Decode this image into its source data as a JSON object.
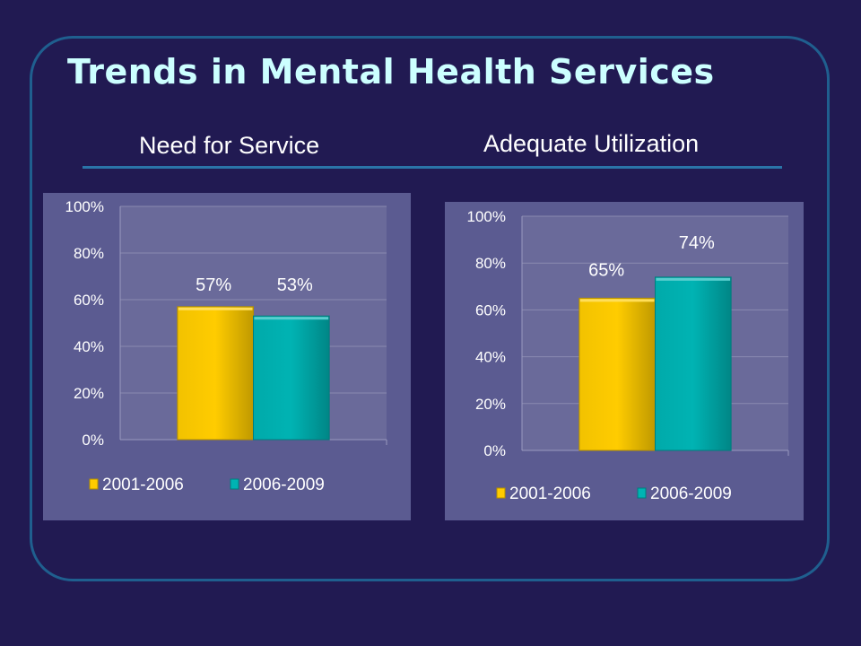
{
  "slide": {
    "title": "Trends in Mental Health Services",
    "subtitle_left": "Need for Service",
    "subtitle_right": "Adequate Utilization"
  },
  "colors": {
    "background": "#211a52",
    "frame": "#1f5f8f",
    "title": "#ccffff",
    "plot_area": "#6a6a9a",
    "chart_area": "#5b5b91",
    "series_1": "#ffcc00",
    "series_2": "#00b3b3"
  },
  "chart_data": [
    {
      "type": "bar",
      "title": "Need for Service",
      "categories": [
        ""
      ],
      "series": [
        {
          "name": "2001-2006",
          "values": [
            57
          ],
          "label": "57%"
        },
        {
          "name": "2006-2009",
          "values": [
            53
          ],
          "label": "53%"
        }
      ],
      "ylim": [
        0,
        100
      ],
      "yticks": [
        "0%",
        "20%",
        "40%",
        "60%",
        "80%",
        "100%"
      ],
      "grid": true,
      "legend": "bottom"
    },
    {
      "type": "bar",
      "title": "Adequate Utilization",
      "categories": [
        ""
      ],
      "series": [
        {
          "name": "2001-2006",
          "values": [
            65
          ],
          "label": "65%"
        },
        {
          "name": "2006-2009",
          "values": [
            74
          ],
          "label": "74%"
        }
      ],
      "ylim": [
        0,
        100
      ],
      "yticks": [
        "0%",
        "20%",
        "40%",
        "60%",
        "80%",
        "100%"
      ],
      "grid": true,
      "legend": "bottom"
    }
  ]
}
